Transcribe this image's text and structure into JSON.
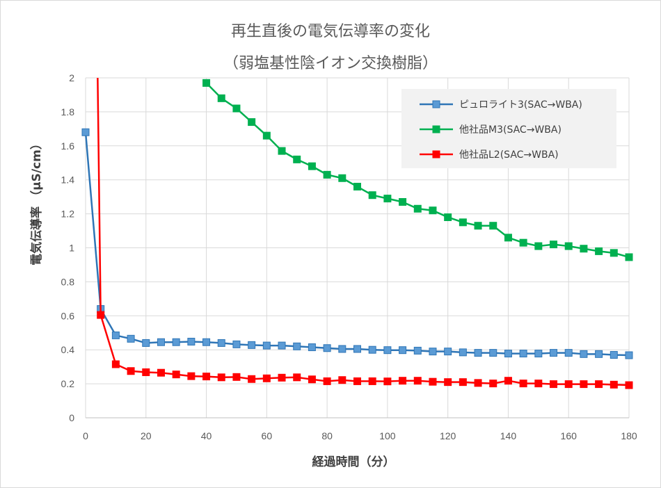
{
  "chart_data": {
    "type": "line",
    "title": "再生直後の電気伝導率の変化",
    "subtitle": "（弱塩基性陰イオン交換樹脂）",
    "xlabel": "経過時間（分）",
    "ylabel": "電気伝導率 （μS/cm）",
    "xlim": [
      0,
      180
    ],
    "ylim": [
      0,
      2
    ],
    "xticks": [
      0,
      20,
      40,
      60,
      80,
      100,
      120,
      140,
      160,
      180
    ],
    "yticks": [
      0,
      0.2,
      0.4,
      0.6,
      0.8,
      1,
      1.2,
      1.4,
      1.6,
      1.8,
      2
    ],
    "grid": true,
    "legend_position": "top-right",
    "series": [
      {
        "name": "ピュロライト3(SAC→WBA)",
        "color": "#2E75B6",
        "marker_color": "#5B9BD5",
        "x": [
          0,
          5,
          10,
          15,
          20,
          25,
          30,
          35,
          40,
          45,
          50,
          55,
          60,
          65,
          70,
          75,
          80,
          85,
          90,
          95,
          100,
          105,
          110,
          115,
          120,
          125,
          130,
          135,
          140,
          145,
          150,
          155,
          160,
          165,
          170,
          175,
          180
        ],
        "y": [
          1.68,
          0.64,
          0.485,
          0.465,
          0.44,
          0.445,
          0.445,
          0.448,
          0.445,
          0.44,
          0.432,
          0.428,
          0.425,
          0.425,
          0.42,
          0.415,
          0.41,
          0.405,
          0.405,
          0.4,
          0.398,
          0.398,
          0.395,
          0.39,
          0.39,
          0.385,
          0.382,
          0.382,
          0.378,
          0.378,
          0.378,
          0.382,
          0.382,
          0.375,
          0.375,
          0.37,
          0.368
        ]
      },
      {
        "name": "他社品M3(SAC→WBA)",
        "color": "#00B050",
        "marker_color": "#00B050",
        "x": [
          40,
          45,
          50,
          55,
          60,
          65,
          70,
          75,
          80,
          85,
          90,
          95,
          100,
          105,
          110,
          115,
          120,
          125,
          130,
          135,
          140,
          145,
          150,
          155,
          160,
          165,
          170,
          175,
          180
        ],
        "y": [
          1.97,
          1.88,
          1.82,
          1.74,
          1.66,
          1.57,
          1.52,
          1.48,
          1.43,
          1.41,
          1.36,
          1.31,
          1.29,
          1.27,
          1.23,
          1.22,
          1.18,
          1.15,
          1.13,
          1.13,
          1.06,
          1.03,
          1.01,
          1.02,
          1.01,
          0.995,
          0.98,
          0.97,
          0.945
        ]
      },
      {
        "name": "他社品L2(SAC→WBA)",
        "color": "#FF0000",
        "marker_color": "#FF0000",
        "x": [
          4,
          5,
          10,
          15,
          20,
          25,
          30,
          35,
          40,
          45,
          50,
          55,
          60,
          65,
          70,
          75,
          80,
          85,
          90,
          95,
          100,
          105,
          110,
          115,
          120,
          125,
          130,
          135,
          140,
          145,
          150,
          155,
          160,
          165,
          170,
          175,
          180
        ],
        "y": [
          2.0,
          0.605,
          0.315,
          0.275,
          0.268,
          0.265,
          0.255,
          0.245,
          0.243,
          0.238,
          0.24,
          0.228,
          0.232,
          0.236,
          0.238,
          0.226,
          0.215,
          0.222,
          0.215,
          0.215,
          0.214,
          0.218,
          0.218,
          0.212,
          0.21,
          0.21,
          0.205,
          0.202,
          0.218,
          0.202,
          0.202,
          0.198,
          0.198,
          0.198,
          0.198,
          0.195,
          0.192
        ],
        "marker_from_index": 1
      }
    ]
  }
}
